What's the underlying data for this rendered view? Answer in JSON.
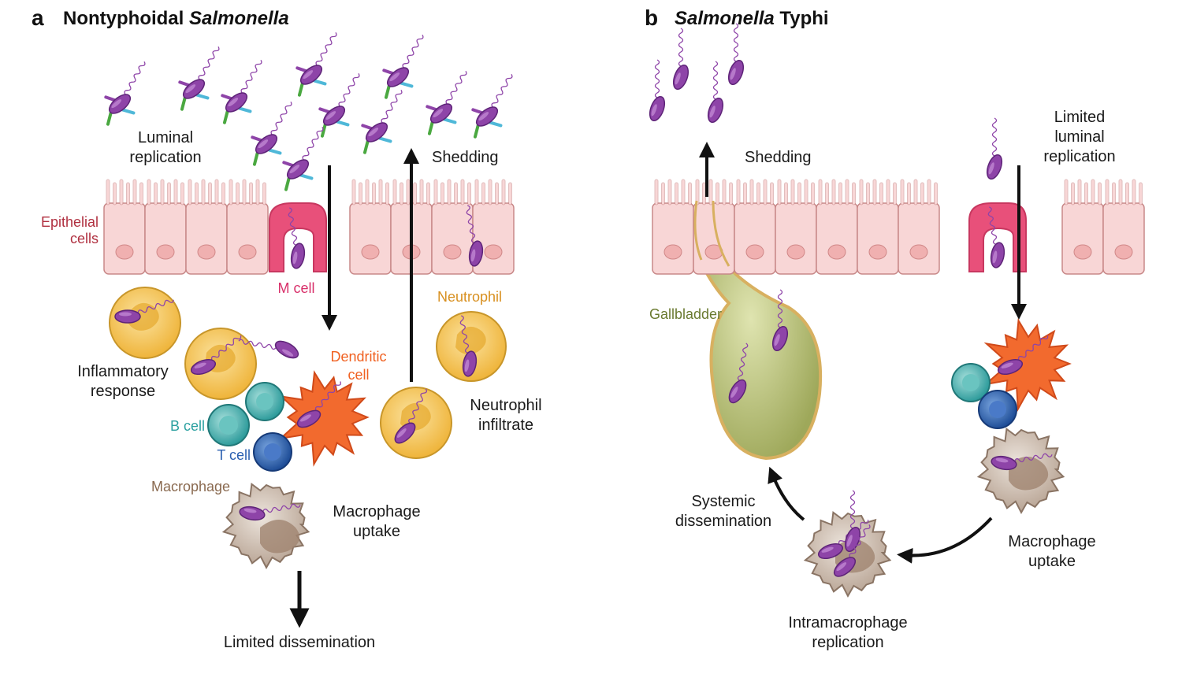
{
  "panel_a": {
    "letter": "a",
    "title_plain": "Nontyphoidal ",
    "title_italic": "Salmonella",
    "luminal_replication": [
      "Luminal",
      "replication"
    ],
    "shedding": "Shedding",
    "epithelial_cells": [
      "Epithelial",
      "cells"
    ],
    "m_cell": "M cell",
    "neutrophil": "Neutrophil",
    "dendritic_cell": [
      "Dendritic",
      "cell"
    ],
    "inflammatory_response": [
      "Inflammatory",
      "response"
    ],
    "neutrophil_infiltrate": [
      "Neutrophil",
      "infiltrate"
    ],
    "b_cell": "B cell",
    "t_cell": "T cell",
    "macrophage": "Macrophage",
    "macrophage_uptake": [
      "Macrophage",
      "uptake"
    ],
    "limited_dissemination": "Limited dissemination"
  },
  "panel_b": {
    "letter": "b",
    "title_italic": "Salmonella",
    "title_plain": " Typhi",
    "shedding": "Shedding",
    "limited_luminal_replication": [
      "Limited",
      "luminal",
      "replication"
    ],
    "gallbladder": "Gallbladder",
    "systemic_dissemination": [
      "Systemic",
      "dissemination"
    ],
    "intramacrophage_replication": [
      "Intramacrophage",
      "replication"
    ],
    "macrophage_uptake": [
      "Macrophage",
      "uptake"
    ]
  },
  "colors": {
    "bacterium": "#8e44a8",
    "epithelium": "#f8d4d4",
    "m_cell": "#e8507a",
    "neutrophil": "#f0b840",
    "dendritic": "#f26a2e",
    "b_cell": "#3aaaaa",
    "t_cell": "#2a5fb0",
    "macrophage": "#c8b8a8",
    "gallbladder": "#b8c070",
    "label_red": "#b03040",
    "label_pink": "#d8306a",
    "label_orange": "#d89020",
    "label_dendritic": "#f06020",
    "label_teal": "#2aa0a0",
    "label_blue": "#2a5fb0",
    "label_brown": "#8a6a50",
    "label_olive": "#6a7a30"
  }
}
